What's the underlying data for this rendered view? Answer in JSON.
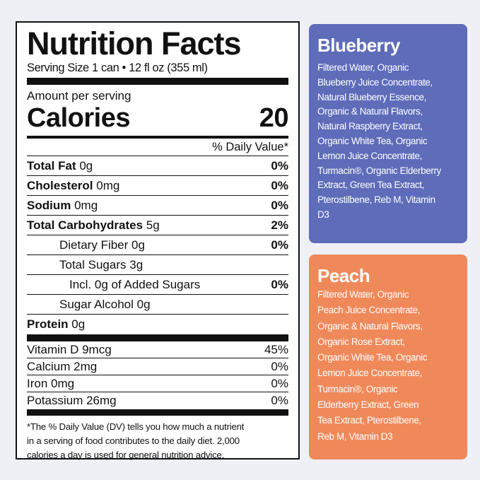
{
  "label": {
    "title": "Nutrition Facts",
    "serving": "Serving Size 1 can • 12 fl oz (355 ml)",
    "amount": "Amount per serving",
    "calories_label": "Calories",
    "calories_value": "20",
    "dv_header": "% Daily Value*",
    "nutrients": [
      {
        "name": "Total Fat",
        "amount": "0g",
        "dv": "0%",
        "bold": true,
        "indent": 0
      },
      {
        "name": "Cholesterol",
        "amount": "0mg",
        "dv": "0%",
        "bold": true,
        "indent": 0
      },
      {
        "name": "Sodium",
        "amount": "0mg",
        "dv": "0%",
        "bold": true,
        "indent": 0
      },
      {
        "name": "Total Carbohydrates",
        "amount": "5g",
        "dv": "2%",
        "bold": true,
        "indent": 0
      },
      {
        "name": "Dietary Fiber",
        "amount": "0g",
        "dv": "0%",
        "bold": false,
        "indent": 1
      },
      {
        "name": "Total Sugars",
        "amount": "3g",
        "dv": "",
        "bold": false,
        "indent": 1
      },
      {
        "name": "Incl. 0g of Added Sugars",
        "amount": "",
        "dv": "0%",
        "bold": false,
        "indent": 2
      },
      {
        "name": "Sugar Alcohol",
        "amount": "0g",
        "dv": "",
        "bold": false,
        "indent": 1
      },
      {
        "name": "Protein",
        "amount": "0g",
        "dv": "",
        "bold": true,
        "indent": 0
      }
    ],
    "vitamins": [
      {
        "name": "Vitamin D 9mcg",
        "dv": "45%"
      },
      {
        "name": "Calcium 2mg",
        "dv": "0%"
      },
      {
        "name": "Iron 0mg",
        "dv": "0%"
      },
      {
        "name": "Potassium 26mg",
        "dv": "0%"
      }
    ],
    "footnote": [
      "*The % Daily Value (DV) tells you how much a nutrient",
      "in a serving of food contributes to the daily diet. 2,000",
      "calories a day is used for general nutrition advice."
    ]
  },
  "flavors": [
    {
      "name": "Blueberry",
      "color": "#5e6cb9",
      "ingredients": [
        "Filtered Water, Organic",
        "Blueberry Juice Concentrate,",
        "Natural Blueberry Essence,",
        "Organic & Natural Flavors,",
        "Natural Raspberry Extract,",
        "Organic White Tea, Organic",
        "Lemon Juice Concentrate,",
        "Turmacin®, Organic Elderberry",
        "Extract, Green Tea Extract,",
        "Pterostilbene, Reb M, Vitamin",
        "D3"
      ]
    },
    {
      "name": "Peach",
      "color": "#f0895a",
      "ingredients": [
        "Filtered Water, Organic",
        "Peach Juice Concentrate,",
        "Organic & Natural Flavors,",
        "Organic Rose Extract,",
        "Organic White Tea, Organic",
        "Lemon Juice Concentrate,",
        "Turmacin®, Organic",
        "Elderberry Extract, Green",
        "Tea Extract, Pterostilbene,",
        "Reb M, Vitamin D3"
      ]
    }
  ]
}
